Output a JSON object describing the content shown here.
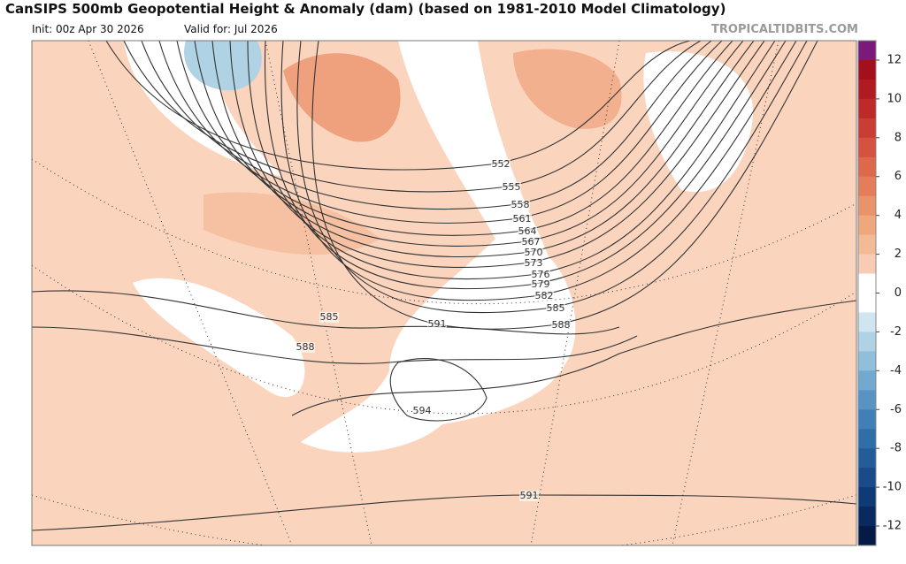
{
  "header": {
    "title": "CanSIPS 500mb Geopotential Height & Anomaly (dam) (based on 1981-2010 Model Climatology)",
    "init": "Init: 00z Apr 30 2026",
    "valid": "Valid for: Jul 2026",
    "source": "TROPICALTIDBITS.COM"
  },
  "contour_labels": [
    552,
    555,
    558,
    561,
    564,
    567,
    570,
    573,
    576,
    579,
    582,
    585,
    588,
    591,
    594,
    585,
    588,
    591
  ],
  "colorbar": {
    "ticks": [
      12,
      10,
      8,
      6,
      4,
      2,
      0,
      -2,
      -4,
      -6,
      -8,
      -10,
      -12
    ],
    "colors": [
      "#7b1a7b",
      "#a3101c",
      "#b11a21",
      "#be2a2a",
      "#ca3d34",
      "#d4523f",
      "#dd684b",
      "#e47e5a",
      "#ea936a",
      "#efa77e",
      "#f3ba96",
      "#f8ccb2",
      "#ffffff",
      "#ffffff",
      "#cfe5ef",
      "#afd2e5",
      "#90bedb",
      "#73a9cf",
      "#5894c3",
      "#4180b6",
      "#306ea8",
      "#225c99",
      "#184b88",
      "#0e3a75",
      "#082a5f",
      "#051b46"
    ]
  }
}
